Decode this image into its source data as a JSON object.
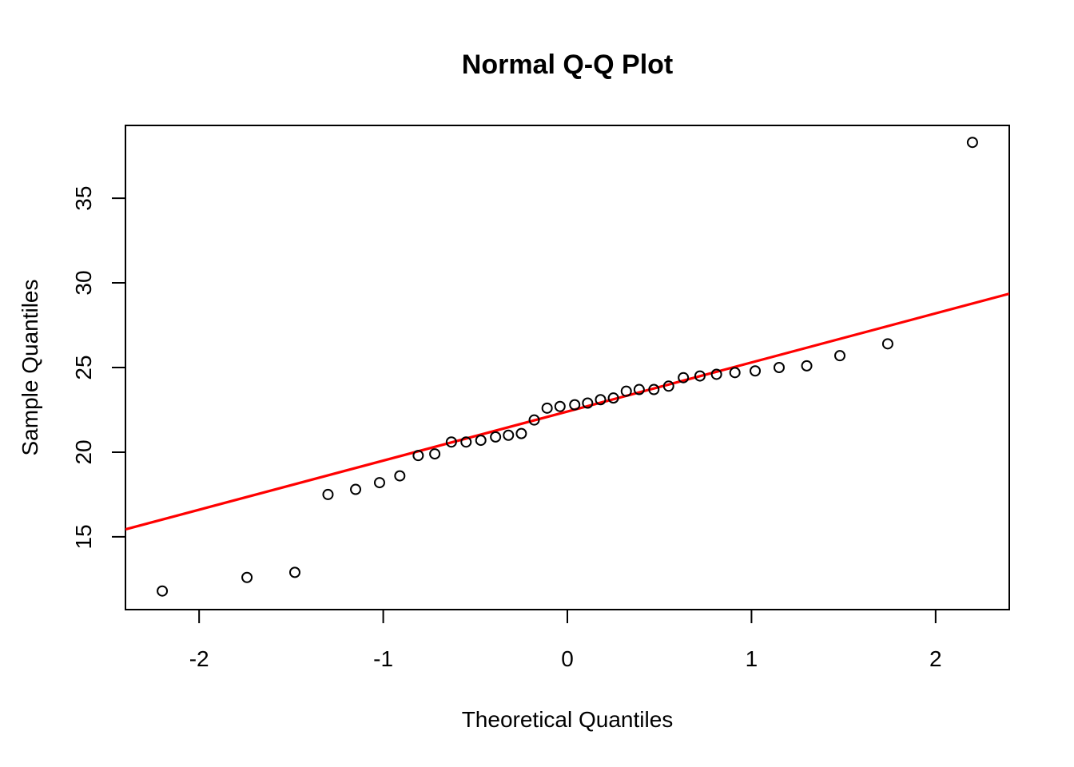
{
  "chart_data": {
    "type": "scatter",
    "title": "Normal Q-Q Plot",
    "xlabel": "Theoretical Quantiles",
    "ylabel": "Sample Quantiles",
    "xlim": [
      -2.4,
      2.4
    ],
    "ylim": [
      10.7,
      39.3
    ],
    "xticks": [
      -2,
      -1,
      0,
      1,
      2
    ],
    "xtick_labels": [
      "-2",
      "-1",
      "0",
      "1",
      "2"
    ],
    "yticks": [
      15,
      20,
      25,
      30,
      35
    ],
    "ytick_labels": [
      "15",
      "20",
      "25",
      "30",
      "35"
    ],
    "grid": false,
    "colors": {
      "points": "#000000",
      "line": "#ff0000",
      "frame": "#000000"
    },
    "series": [
      {
        "kind": "points",
        "x": [
          -2.2,
          -1.74,
          -1.48,
          -1.3,
          -1.15,
          -1.02,
          -0.91,
          -0.81,
          -0.72,
          -0.63,
          -0.55,
          -0.47,
          -0.39,
          -0.32,
          -0.25,
          -0.18,
          -0.11,
          -0.04,
          0.04,
          0.11,
          0.18,
          0.25,
          0.32,
          0.39,
          0.47,
          0.55,
          0.63,
          0.72,
          0.81,
          0.91,
          1.02,
          1.15,
          1.3,
          1.48,
          1.74,
          2.2
        ],
        "y": [
          11.8,
          12.6,
          12.9,
          17.5,
          17.8,
          18.2,
          18.6,
          19.8,
          19.9,
          20.6,
          20.6,
          20.7,
          20.9,
          21.0,
          21.1,
          21.9,
          22.6,
          22.7,
          22.8,
          22.9,
          23.1,
          23.2,
          23.6,
          23.7,
          23.7,
          23.9,
          24.4,
          24.5,
          24.6,
          24.7,
          24.8,
          25.0,
          25.1,
          25.7,
          26.4,
          38.3
        ]
      },
      {
        "kind": "reference-line",
        "intercept": 22.4,
        "slope": 2.9
      }
    ]
  }
}
